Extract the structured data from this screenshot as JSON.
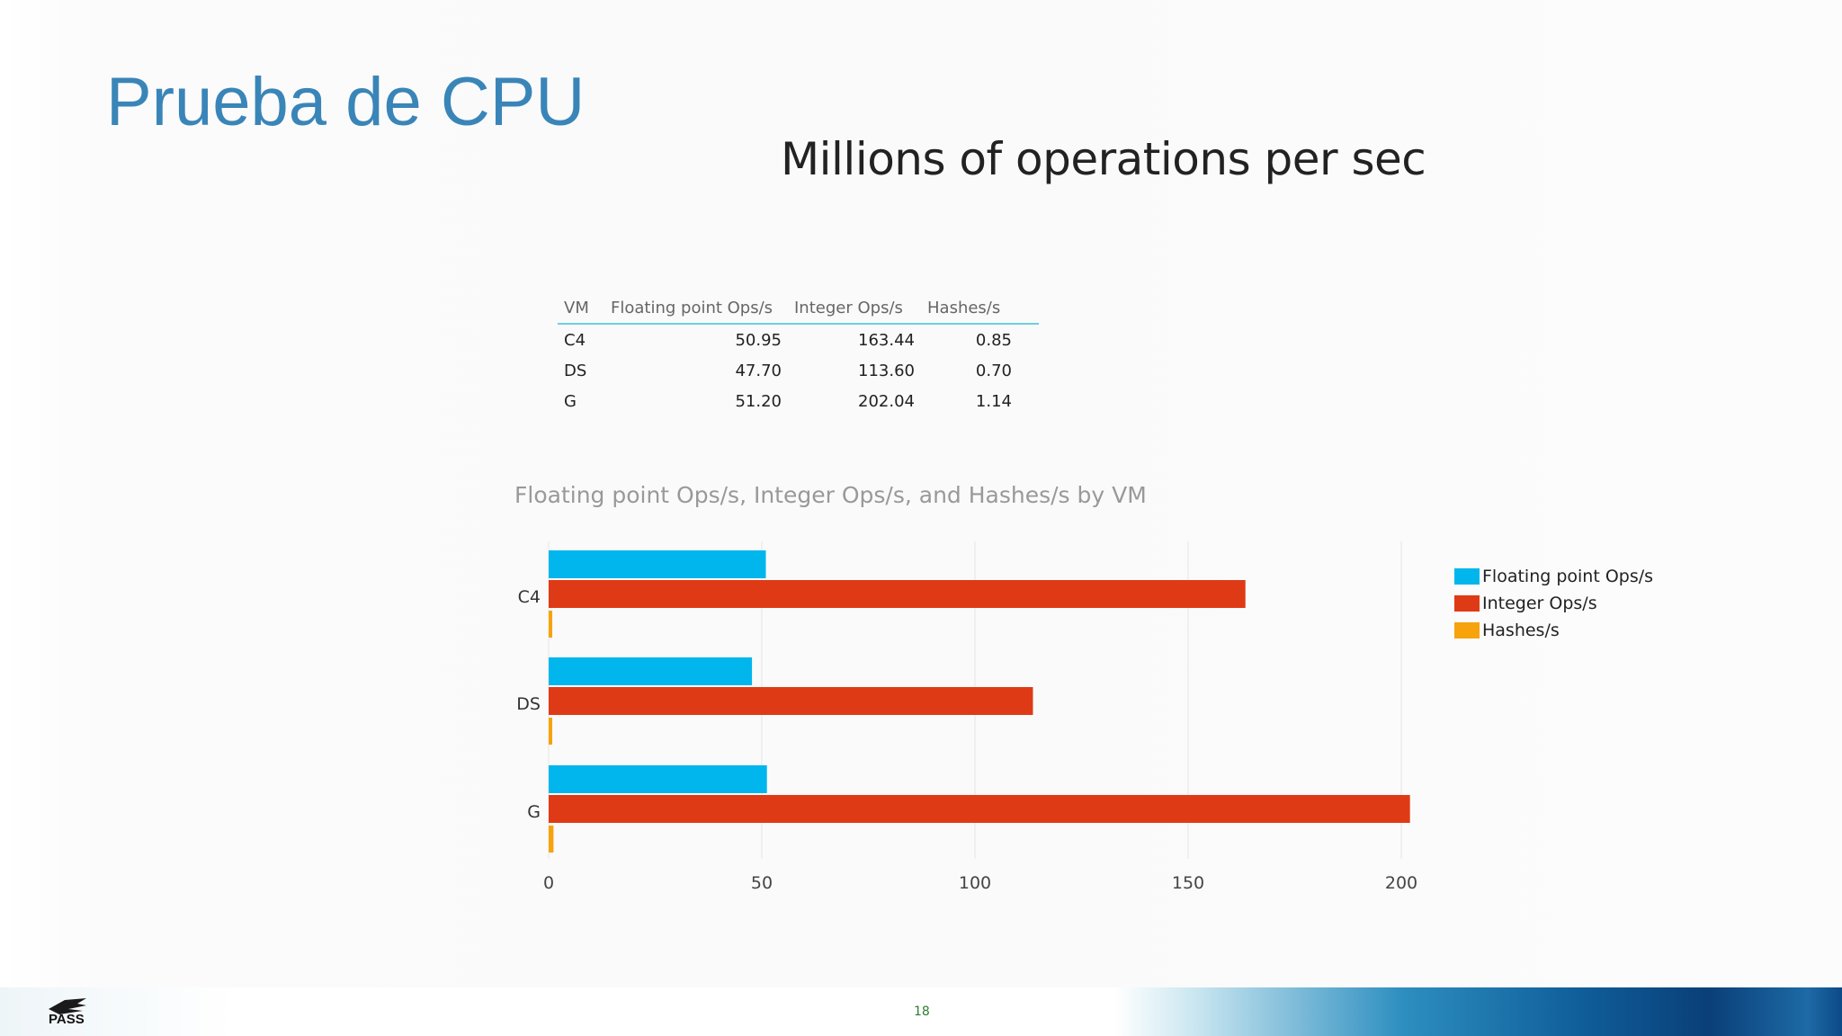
{
  "slide": {
    "title": "Prueba de CPU",
    "page_number": "18",
    "logo_text": "PASS"
  },
  "colors": {
    "title": "#3a85b8",
    "floating": "#00b6ed",
    "integer": "#df3a16",
    "hashes": "#f7a30c"
  },
  "table": {
    "headers": [
      "VM",
      "Floating point Ops/s",
      "Integer Ops/s",
      "Hashes/s"
    ],
    "rows": [
      [
        "C4",
        "50.95",
        "163.44",
        "0.85"
      ],
      [
        "DS",
        "47.70",
        "113.60",
        "0.70"
      ],
      [
        "G",
        "51.20",
        "202.04",
        "1.14"
      ]
    ]
  },
  "chart_data": {
    "type": "bar",
    "orientation": "horizontal",
    "title": "Millions of operations per sec",
    "subtitle": "Floating point Ops/s, Integer Ops/s, and Hashes/s by VM",
    "categories": [
      "C4",
      "DS",
      "G"
    ],
    "series": [
      {
        "name": "Floating point Ops/s",
        "values": [
          50.95,
          47.7,
          51.2
        ]
      },
      {
        "name": "Integer Ops/s",
        "values": [
          163.44,
          113.6,
          202.04
        ]
      },
      {
        "name": "Hashes/s",
        "values": [
          0.85,
          0.7,
          1.14
        ]
      }
    ],
    "xlim": [
      0,
      200
    ],
    "xticks": [
      0,
      50,
      100,
      150,
      200
    ],
    "grid": true,
    "legend_position": "right"
  }
}
